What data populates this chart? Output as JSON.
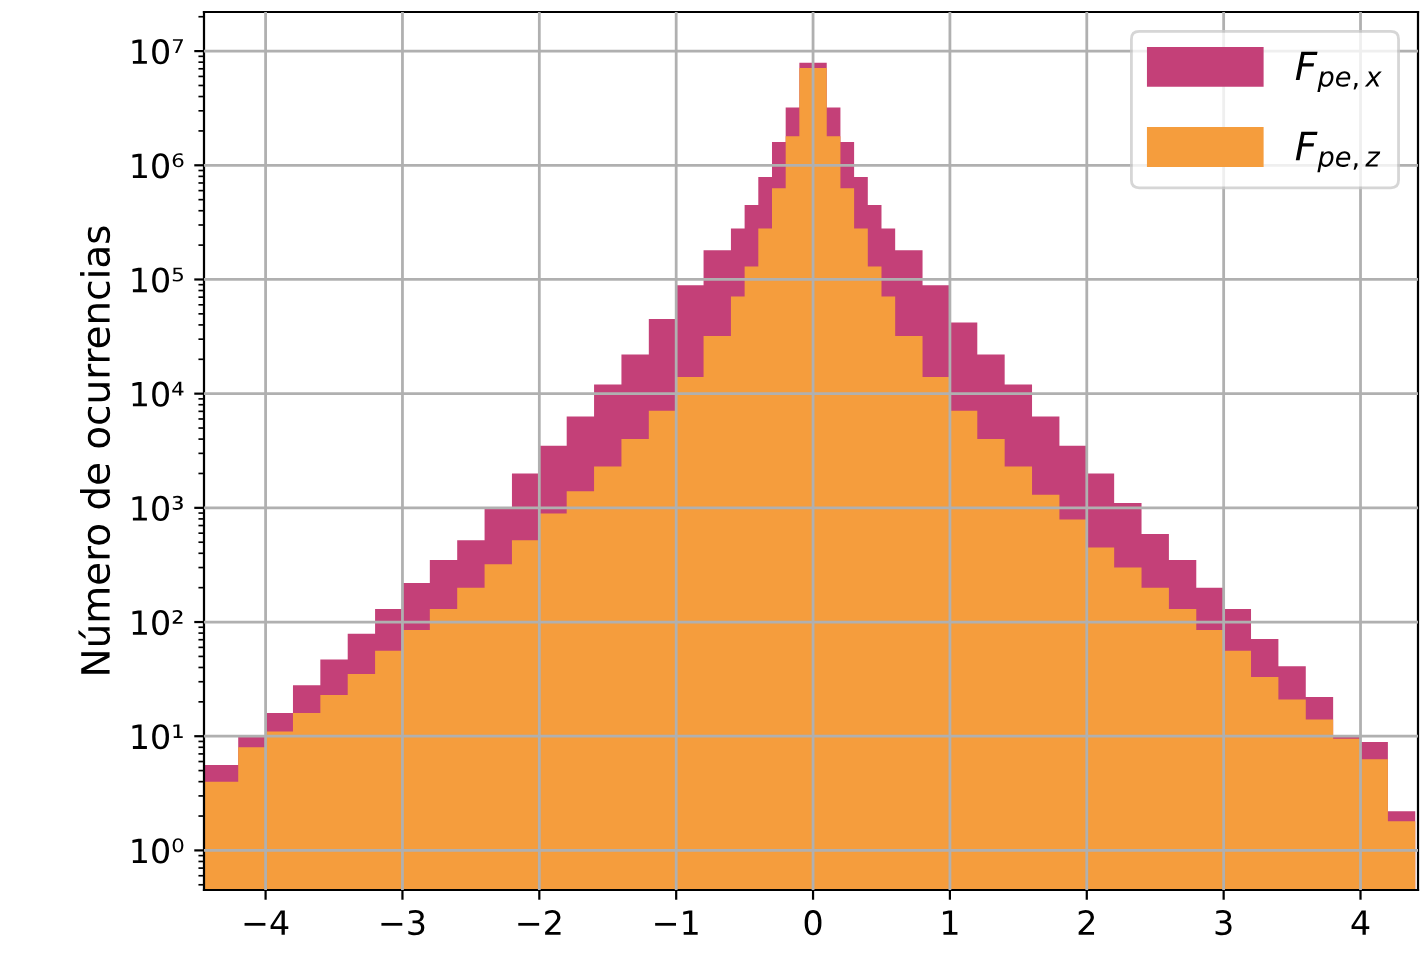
{
  "chart_data": {
    "type": "histogram",
    "ylabel": "Número de ocurrencias",
    "log": "y",
    "grid": true,
    "legend": "top right",
    "bins": [
      -4.45,
      -4.2,
      -4.0,
      -3.8,
      -3.6,
      -3.4,
      -3.2,
      -3.0,
      -2.8,
      -2.6,
      -2.4,
      -2.2,
      -2.0,
      -1.8,
      -1.6,
      -1.4,
      -1.2,
      -1.0,
      -0.8,
      -0.6,
      -0.5,
      -0.4,
      -0.3,
      -0.2,
      -0.1,
      0.0,
      0.1,
      0.2,
      0.3,
      0.4,
      0.5,
      0.6,
      0.8,
      1.0,
      1.2,
      1.4,
      1.6,
      1.8,
      2.0,
      2.2,
      2.4,
      2.6,
      2.8,
      3.0,
      3.2,
      3.4,
      3.6,
      3.8,
      4.0,
      4.2,
      4.4
    ],
    "series": [
      {
        "name": "F$_{pe,x}$",
        "color": "#c44078",
        "values": [
          5.6,
          10,
          16,
          28,
          47,
          79,
          130,
          220,
          350,
          520,
          1000,
          2000,
          3500,
          6300,
          12000,
          22000,
          45000,
          89000,
          180000,
          280000,
          450000,
          790000,
          1600000,
          3200000,
          7900000,
          7900000,
          3200000,
          1600000,
          790000,
          450000,
          280000,
          180000,
          89000,
          42000,
          22000,
          12000,
          6300,
          3500,
          2000,
          1100,
          590,
          350,
          200,
          130,
          71,
          41,
          22,
          10,
          8.9,
          2.2
        ]
      },
      {
        "name": "F$_{pe,z}$",
        "color": "#f59d3d",
        "values": [
          4,
          8,
          11,
          16,
          23,
          35,
          56,
          85,
          130,
          200,
          320,
          520,
          890,
          1400,
          2300,
          4000,
          7100,
          14000,
          32000,
          71000,
          130000,
          280000,
          630000,
          1800000,
          7100000,
          7100000,
          1800000,
          630000,
          280000,
          130000,
          71000,
          32000,
          14000,
          7100,
          4000,
          2300,
          1300,
          790,
          450,
          300,
          200,
          130,
          85,
          56,
          33,
          21,
          14,
          9.5,
          6.3,
          1.8
        ]
      }
    ],
    "xlim": [
      -4.45,
      4.42
    ],
    "xticks": [
      {
        "value": -4,
        "label": "−4"
      },
      {
        "value": -3,
        "label": "−3"
      },
      {
        "value": -2,
        "label": "−2"
      },
      {
        "value": -1,
        "label": "−1"
      },
      0,
      1,
      2,
      3,
      4
    ],
    "ylim": [
      0.45,
      22000000
    ],
    "yticks": [
      {
        "value": 1,
        "label": "10⁰"
      },
      {
        "value": 10,
        "label": "10¹"
      },
      {
        "value": 100,
        "label": "10²"
      },
      {
        "value": 1000,
        "label": "10³"
      },
      {
        "value": 10000,
        "label": "10⁴"
      },
      {
        "value": 100000,
        "label": "10⁵"
      },
      {
        "value": 1000000,
        "label": "10⁶"
      },
      {
        "value": 10000000,
        "label": "10⁷"
      }
    ]
  }
}
